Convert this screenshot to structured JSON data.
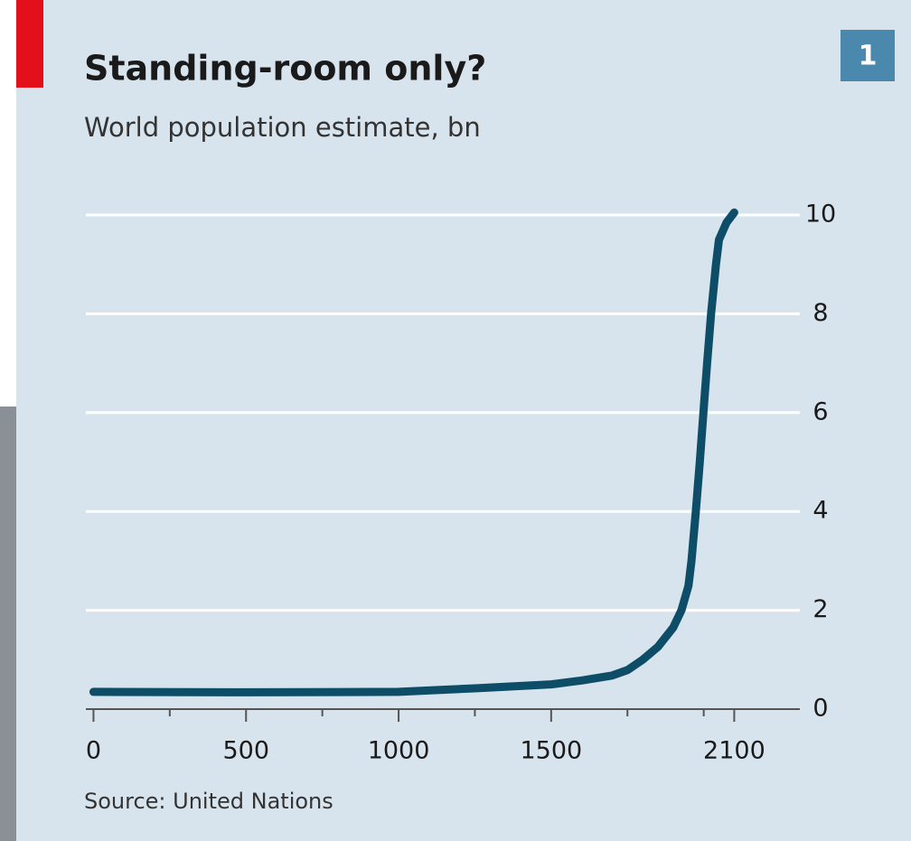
{
  "chart_data": {
    "type": "line",
    "title": "Standing-room only?",
    "subtitle": "World population estimate, bn",
    "badge": "1",
    "source": "Source: United Nations",
    "x": [
      0,
      500,
      1000,
      1250,
      1500,
      1600,
      1700,
      1750,
      1800,
      1850,
      1900,
      1927,
      1950,
      1960,
      1974,
      1987,
      1999,
      2011,
      2024,
      2040,
      2050,
      2075,
      2100
    ],
    "values": [
      0.35,
      0.34,
      0.35,
      0.42,
      0.5,
      0.58,
      0.68,
      0.79,
      1.0,
      1.26,
      1.65,
      2.0,
      2.5,
      3.0,
      4.0,
      5.0,
      6.0,
      7.0,
      8.0,
      9.0,
      9.5,
      9.85,
      10.05
    ],
    "color": "#0e4d67",
    "xlim": [
      -25,
      2315
    ],
    "xticks": [
      0,
      500,
      1000,
      1500,
      2100
    ],
    "xminor_ticks": [
      250,
      750,
      1250,
      1750,
      2000
    ],
    "ylim": [
      0,
      10
    ],
    "yticks": [
      0,
      2,
      4,
      6,
      8,
      10
    ],
    "grid": true
  }
}
